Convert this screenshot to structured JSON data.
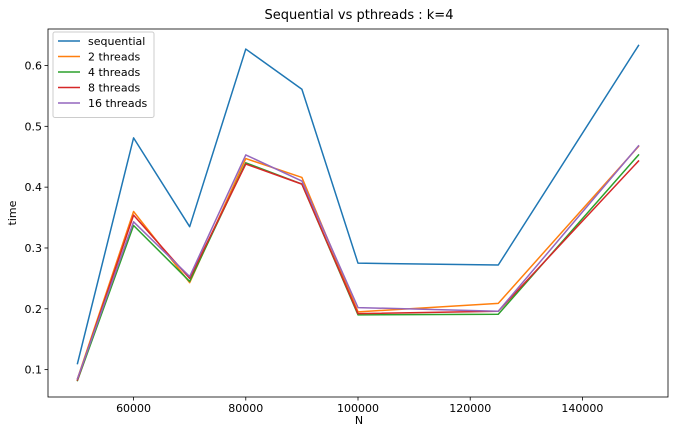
{
  "chart_data": {
    "type": "line",
    "title": "Sequential vs pthreads : k=4",
    "xlabel": "N",
    "ylabel": "time",
    "xlim": [
      44750,
      155250
    ],
    "ylim": [
      0.055,
      0.66
    ],
    "xticks": [
      60000,
      80000,
      100000,
      120000,
      140000
    ],
    "yticks": [
      0.1,
      0.2,
      0.3,
      0.4,
      0.5,
      0.6
    ],
    "grid": false,
    "legend_position": "top-left",
    "x": [
      50000,
      60000,
      70000,
      80000,
      90000,
      100000,
      125000,
      150000
    ],
    "series": [
      {
        "name": "sequential",
        "color": "#1f77b4",
        "values": [
          0.11,
          0.481,
          0.335,
          0.627,
          0.561,
          0.275,
          0.272,
          0.633
        ]
      },
      {
        "name": "2 threads",
        "color": "#ff7f0e",
        "values": [
          0.085,
          0.36,
          0.243,
          0.447,
          0.416,
          0.195,
          0.209,
          0.467
        ]
      },
      {
        "name": "4 threads",
        "color": "#2ca02c",
        "values": [
          0.082,
          0.337,
          0.245,
          0.44,
          0.405,
          0.19,
          0.191,
          0.453
        ]
      },
      {
        "name": "8 threads",
        "color": "#d62728",
        "values": [
          0.083,
          0.354,
          0.25,
          0.438,
          0.405,
          0.192,
          0.196,
          0.443
        ]
      },
      {
        "name": "16 threads",
        "color": "#9467bd",
        "values": [
          0.085,
          0.343,
          0.253,
          0.453,
          0.41,
          0.202,
          0.196,
          0.468
        ]
      }
    ]
  }
}
